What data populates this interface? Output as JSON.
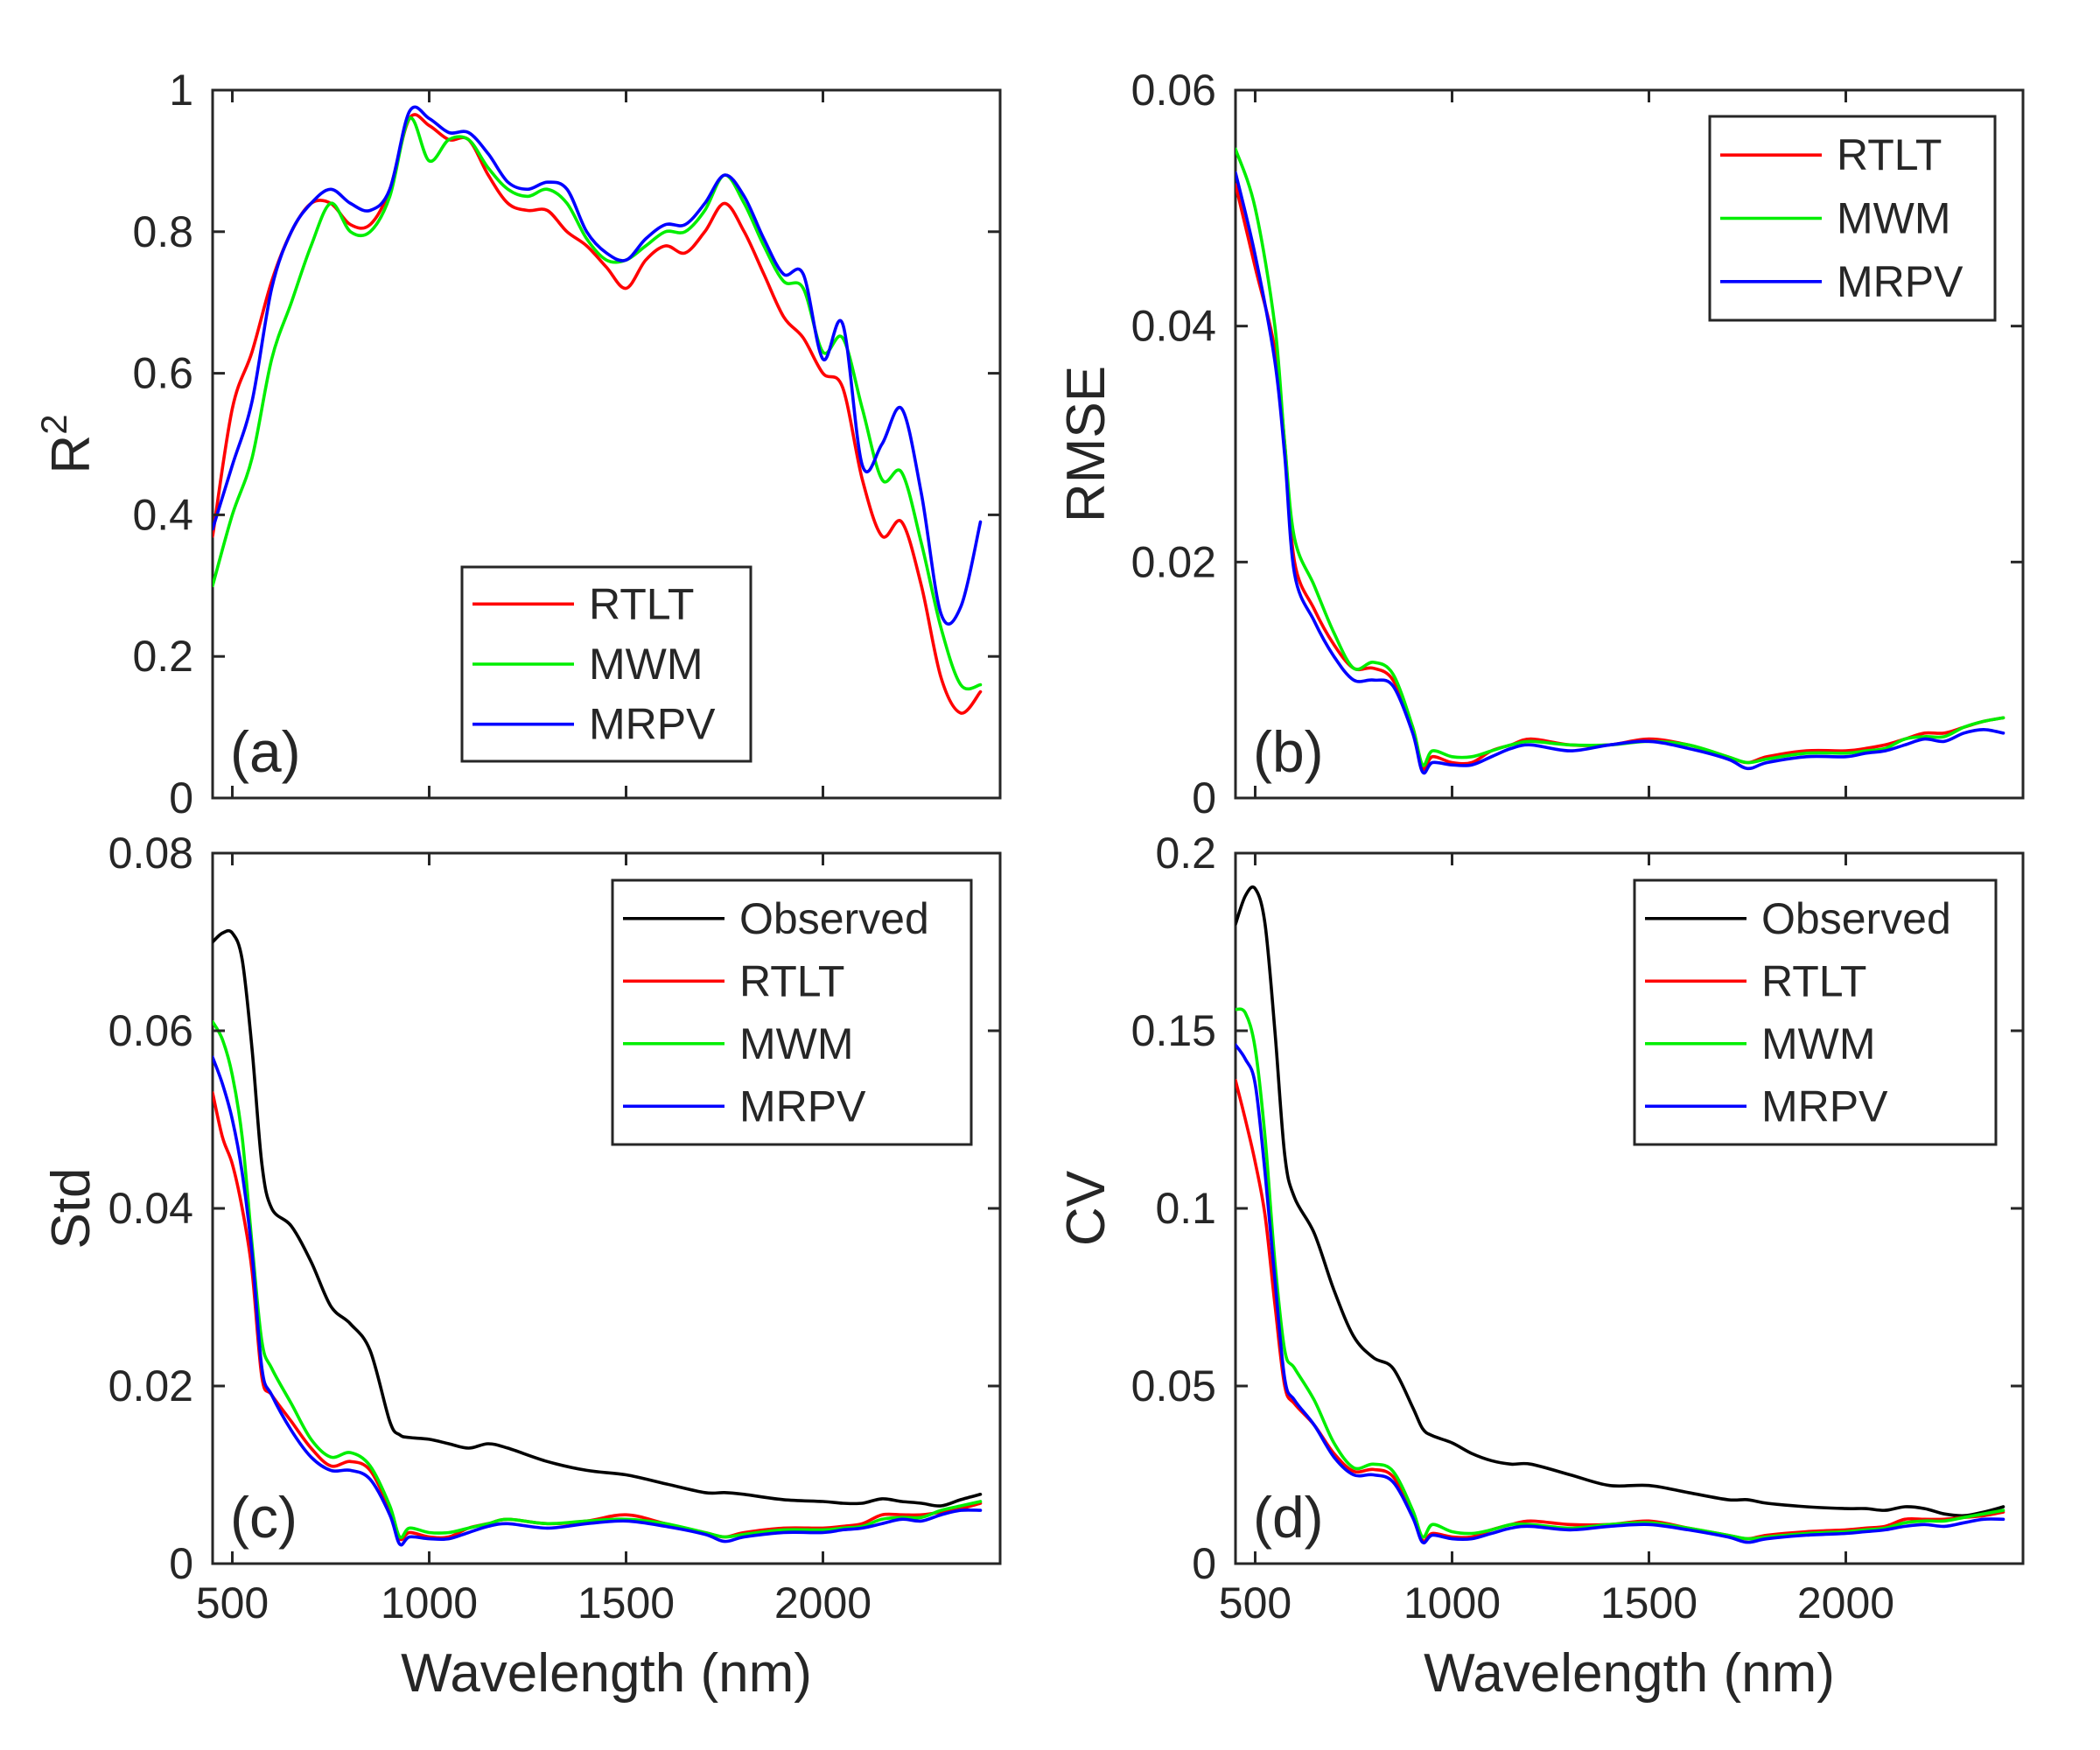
{
  "figure": {
    "colors": {
      "Observed": "#000000",
      "RTLT": "#ff0000",
      "MWM": "#00ee00",
      "MRPV": "#0000ff"
    }
  },
  "chart_data": [
    {
      "type": "line",
      "panel": "(a)",
      "xlabel": "",
      "ylabel": "R",
      "ylabel_superscript": "2",
      "xlim": [
        450,
        2450
      ],
      "ylim": [
        0,
        1
      ],
      "xticks": [
        500,
        1000,
        1500,
        2000
      ],
      "xtick_labels": [],
      "yticks": [
        0,
        0.2,
        0.4,
        0.6,
        0.8,
        1
      ],
      "ytick_labels": [
        "0",
        "0.2",
        "0.4",
        "0.6",
        "0.8",
        "1"
      ],
      "legend": {
        "position": "lower-center",
        "entries": [
          "RTLT",
          "MWM",
          "MRPV"
        ]
      },
      "x": [
        450,
        500,
        550,
        600,
        650,
        700,
        750,
        800,
        850,
        900,
        950,
        1000,
        1050,
        1100,
        1150,
        1200,
        1250,
        1300,
        1350,
        1400,
        1450,
        1500,
        1550,
        1600,
        1650,
        1700,
        1750,
        1800,
        1850,
        1900,
        1950,
        2000,
        2050,
        2100,
        2150,
        2200,
        2250,
        2300,
        2350,
        2400
      ],
      "series": [
        {
          "name": "RTLT",
          "values": [
            0.37,
            0.55,
            0.63,
            0.73,
            0.8,
            0.84,
            0.84,
            0.81,
            0.81,
            0.86,
            0.96,
            0.95,
            0.93,
            0.93,
            0.88,
            0.84,
            0.83,
            0.83,
            0.8,
            0.78,
            0.75,
            0.72,
            0.76,
            0.78,
            0.77,
            0.8,
            0.84,
            0.8,
            0.74,
            0.68,
            0.65,
            0.6,
            0.58,
            0.45,
            0.37,
            0.39,
            0.3,
            0.17,
            0.12,
            0.15
          ]
        },
        {
          "name": "MWM",
          "values": [
            0.3,
            0.4,
            0.48,
            0.62,
            0.7,
            0.78,
            0.84,
            0.8,
            0.8,
            0.85,
            0.96,
            0.9,
            0.93,
            0.93,
            0.89,
            0.86,
            0.85,
            0.86,
            0.84,
            0.79,
            0.76,
            0.76,
            0.78,
            0.8,
            0.8,
            0.83,
            0.88,
            0.84,
            0.78,
            0.73,
            0.72,
            0.63,
            0.65,
            0.55,
            0.45,
            0.46,
            0.36,
            0.24,
            0.16,
            0.16
          ]
        },
        {
          "name": "MRPV",
          "values": [
            0.38,
            0.47,
            0.56,
            0.72,
            0.8,
            0.84,
            0.86,
            0.84,
            0.83,
            0.86,
            0.97,
            0.96,
            0.94,
            0.94,
            0.91,
            0.87,
            0.86,
            0.87,
            0.86,
            0.8,
            0.77,
            0.76,
            0.79,
            0.81,
            0.81,
            0.84,
            0.88,
            0.85,
            0.79,
            0.74,
            0.74,
            0.62,
            0.67,
            0.47,
            0.5,
            0.55,
            0.43,
            0.26,
            0.27,
            0.39
          ]
        }
      ]
    },
    {
      "type": "line",
      "panel": "(b)",
      "xlabel": "",
      "ylabel": "RMSE",
      "xlim": [
        450,
        2450
      ],
      "ylim": [
        0,
        0.06
      ],
      "xticks": [
        500,
        1000,
        1500,
        2000
      ],
      "xtick_labels": [],
      "yticks": [
        0,
        0.02,
        0.04,
        0.06
      ],
      "ytick_labels": [
        "0",
        "0.02",
        "0.04",
        "0.06"
      ],
      "legend": {
        "position": "top-right",
        "entries": [
          "RTLT",
          "MWM",
          "MRPV"
        ]
      },
      "x": [
        450,
        500,
        550,
        575,
        600,
        650,
        700,
        750,
        800,
        850,
        900,
        925,
        950,
        1000,
        1050,
        1100,
        1150,
        1200,
        1300,
        1400,
        1500,
        1600,
        1700,
        1750,
        1800,
        1900,
        2000,
        2050,
        2100,
        2150,
        2200,
        2250,
        2300,
        2350,
        2400
      ],
      "series": [
        {
          "name": "RTLT",
          "values": [
            0.052,
            0.045,
            0.038,
            0.03,
            0.02,
            0.016,
            0.013,
            0.011,
            0.011,
            0.01,
            0.006,
            0.0025,
            0.0035,
            0.003,
            0.003,
            0.004,
            0.0045,
            0.005,
            0.0045,
            0.0045,
            0.005,
            0.0045,
            0.0035,
            0.003,
            0.0035,
            0.004,
            0.004,
            0.0042,
            0.0045,
            0.005,
            0.0055,
            0.0055,
            0.006,
            0.0065,
            0.0068
          ]
        },
        {
          "name": "MWM",
          "values": [
            0.055,
            0.05,
            0.04,
            0.03,
            0.022,
            0.018,
            0.014,
            0.011,
            0.0115,
            0.0105,
            0.006,
            0.0028,
            0.004,
            0.0035,
            0.0035,
            0.004,
            0.0045,
            0.0048,
            0.0045,
            0.0045,
            0.0048,
            0.0045,
            0.0035,
            0.003,
            0.0033,
            0.0038,
            0.0038,
            0.004,
            0.0042,
            0.005,
            0.0052,
            0.0052,
            0.006,
            0.0065,
            0.0068
          ]
        },
        {
          "name": "MRPV",
          "values": [
            0.053,
            0.046,
            0.037,
            0.029,
            0.019,
            0.015,
            0.012,
            0.01,
            0.01,
            0.0095,
            0.0055,
            0.0022,
            0.003,
            0.0028,
            0.0028,
            0.0035,
            0.0042,
            0.0045,
            0.004,
            0.0045,
            0.0048,
            0.0042,
            0.0033,
            0.0025,
            0.003,
            0.0035,
            0.0035,
            0.0038,
            0.004,
            0.0045,
            0.005,
            0.0048,
            0.0055,
            0.0058,
            0.0055
          ]
        }
      ]
    },
    {
      "type": "line",
      "panel": "(c)",
      "xlabel": "Wavelength (nm)",
      "ylabel": "Std",
      "xlim": [
        450,
        2450
      ],
      "ylim": [
        0,
        0.08
      ],
      "xticks": [
        500,
        1000,
        1500,
        2000
      ],
      "xtick_labels": [
        "500",
        "1000",
        "1500",
        "2000"
      ],
      "yticks": [
        0,
        0.02,
        0.04,
        0.06,
        0.08
      ],
      "ytick_labels": [
        "0",
        "0.02",
        "0.04",
        "0.06",
        "0.08"
      ],
      "legend": {
        "position": "top-right",
        "entries": [
          "Observed",
          "RTLT",
          "MWM",
          "MRPV"
        ]
      },
      "x": [
        450,
        475,
        500,
        525,
        550,
        575,
        600,
        650,
        700,
        750,
        800,
        850,
        900,
        925,
        950,
        1000,
        1050,
        1100,
        1150,
        1200,
        1300,
        1400,
        1500,
        1600,
        1700,
        1750,
        1800,
        1900,
        2000,
        2050,
        2100,
        2150,
        2200,
        2250,
        2300,
        2350,
        2400
      ],
      "series": [
        {
          "name": "Observed",
          "values": [
            0.07,
            0.071,
            0.071,
            0.068,
            0.058,
            0.045,
            0.04,
            0.038,
            0.034,
            0.029,
            0.027,
            0.024,
            0.016,
            0.0145,
            0.0142,
            0.014,
            0.0135,
            0.013,
            0.0135,
            0.013,
            0.0115,
            0.0105,
            0.01,
            0.009,
            0.008,
            0.008,
            0.0078,
            0.0072,
            0.007,
            0.0068,
            0.0068,
            0.0073,
            0.007,
            0.0068,
            0.0065,
            0.0072,
            0.0078
          ]
        },
        {
          "name": "RTLT",
          "values": [
            0.053,
            0.048,
            0.045,
            0.04,
            0.033,
            0.021,
            0.019,
            0.016,
            0.013,
            0.011,
            0.0115,
            0.0105,
            0.006,
            0.0028,
            0.0035,
            0.003,
            0.003,
            0.004,
            0.0045,
            0.005,
            0.0045,
            0.0048,
            0.0055,
            0.0045,
            0.0035,
            0.003,
            0.0035,
            0.004,
            0.004,
            0.0042,
            0.0045,
            0.0055,
            0.0055,
            0.0055,
            0.0058,
            0.0062,
            0.0068
          ]
        },
        {
          "name": "MWM",
          "values": [
            0.061,
            0.059,
            0.055,
            0.048,
            0.036,
            0.025,
            0.022,
            0.018,
            0.014,
            0.012,
            0.0125,
            0.011,
            0.0065,
            0.003,
            0.004,
            0.0035,
            0.0035,
            0.004,
            0.0045,
            0.005,
            0.0045,
            0.0048,
            0.005,
            0.0045,
            0.0035,
            0.003,
            0.0033,
            0.0038,
            0.0038,
            0.004,
            0.0042,
            0.005,
            0.0052,
            0.0052,
            0.006,
            0.0065,
            0.007
          ]
        },
        {
          "name": "MRPV",
          "values": [
            0.057,
            0.054,
            0.05,
            0.044,
            0.035,
            0.022,
            0.019,
            0.015,
            0.012,
            0.0105,
            0.0105,
            0.0095,
            0.0055,
            0.0022,
            0.003,
            0.0028,
            0.0028,
            0.0035,
            0.0042,
            0.0045,
            0.004,
            0.0045,
            0.0048,
            0.0042,
            0.0033,
            0.0025,
            0.003,
            0.0035,
            0.0035,
            0.0038,
            0.004,
            0.0045,
            0.005,
            0.0048,
            0.0055,
            0.006,
            0.006
          ]
        }
      ]
    },
    {
      "type": "line",
      "panel": "(d)",
      "xlabel": "Wavelength (nm)",
      "ylabel": "CV",
      "xlim": [
        450,
        2450
      ],
      "ylim": [
        0,
        0.2
      ],
      "xticks": [
        500,
        1000,
        1500,
        2000
      ],
      "xtick_labels": [
        "500",
        "1000",
        "1500",
        "2000"
      ],
      "yticks": [
        0,
        0.05,
        0.1,
        0.15,
        0.2
      ],
      "ytick_labels": [
        "0",
        "0.05",
        "0.1",
        "0.15",
        "0.2"
      ],
      "legend": {
        "position": "top-right",
        "entries": [
          "Observed",
          "RTLT",
          "MWM",
          "MRPV"
        ]
      },
      "x": [
        450,
        475,
        500,
        525,
        550,
        575,
        600,
        650,
        700,
        750,
        800,
        850,
        900,
        925,
        950,
        1000,
        1050,
        1100,
        1150,
        1200,
        1300,
        1400,
        1500,
        1600,
        1700,
        1750,
        1800,
        1900,
        2000,
        2050,
        2100,
        2150,
        2200,
        2250,
        2300,
        2350,
        2400
      ],
      "series": [
        {
          "name": "Observed",
          "values": [
            0.18,
            0.188,
            0.19,
            0.18,
            0.15,
            0.115,
            0.103,
            0.093,
            0.077,
            0.064,
            0.058,
            0.055,
            0.044,
            0.038,
            0.036,
            0.034,
            0.031,
            0.029,
            0.028,
            0.028,
            0.025,
            0.022,
            0.022,
            0.02,
            0.018,
            0.018,
            0.017,
            0.016,
            0.0155,
            0.0155,
            0.015,
            0.016,
            0.0155,
            0.014,
            0.0135,
            0.0145,
            0.016
          ]
        },
        {
          "name": "RTLT",
          "values": [
            0.136,
            0.125,
            0.113,
            0.098,
            0.073,
            0.05,
            0.045,
            0.039,
            0.031,
            0.026,
            0.0265,
            0.0245,
            0.014,
            0.0065,
            0.0085,
            0.0075,
            0.0075,
            0.0095,
            0.011,
            0.012,
            0.011,
            0.011,
            0.012,
            0.01,
            0.008,
            0.007,
            0.008,
            0.009,
            0.0095,
            0.01,
            0.0105,
            0.0125,
            0.0125,
            0.0125,
            0.013,
            0.0135,
            0.0145
          ]
        },
        {
          "name": "MWM",
          "values": [
            0.156,
            0.155,
            0.145,
            0.12,
            0.085,
            0.06,
            0.055,
            0.046,
            0.034,
            0.027,
            0.028,
            0.026,
            0.015,
            0.0075,
            0.011,
            0.009,
            0.0085,
            0.0095,
            0.011,
            0.011,
            0.01,
            0.011,
            0.0115,
            0.01,
            0.008,
            0.007,
            0.0075,
            0.0085,
            0.009,
            0.0095,
            0.01,
            0.0115,
            0.012,
            0.012,
            0.013,
            0.014,
            0.015
          ]
        },
        {
          "name": "MRPV",
          "values": [
            0.146,
            0.142,
            0.135,
            0.11,
            0.08,
            0.052,
            0.046,
            0.039,
            0.03,
            0.025,
            0.025,
            0.023,
            0.013,
            0.006,
            0.008,
            0.007,
            0.007,
            0.0085,
            0.01,
            0.0105,
            0.0095,
            0.0105,
            0.011,
            0.0095,
            0.0075,
            0.006,
            0.007,
            0.008,
            0.0085,
            0.009,
            0.0095,
            0.0105,
            0.011,
            0.0105,
            0.0115,
            0.0125,
            0.0125
          ]
        }
      ]
    }
  ]
}
